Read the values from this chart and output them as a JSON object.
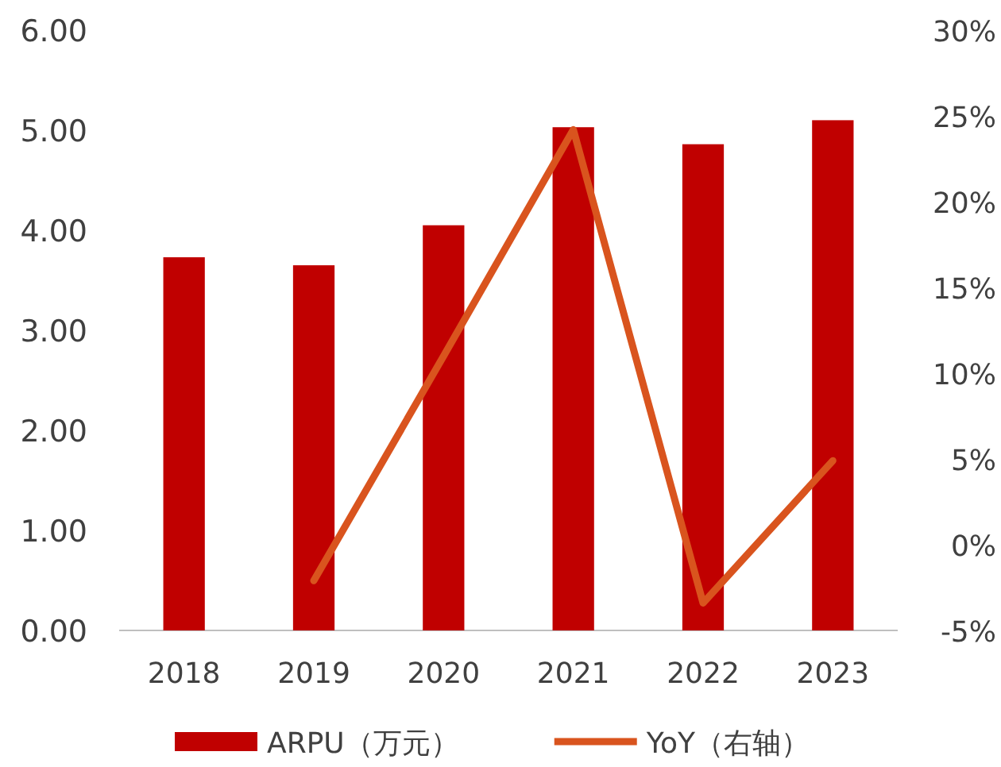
{
  "chart_data": {
    "type": "bar",
    "categories": [
      "2018",
      "2019",
      "2020",
      "2021",
      "2022",
      "2023"
    ],
    "series": [
      {
        "name": "ARPU（万元）",
        "color": "#c00000",
        "values": [
          3.73,
          3.65,
          4.05,
          5.03,
          4.86,
          5.1
        ]
      },
      {
        "name": "YoY（右轴）",
        "type": "line",
        "axis": "y2",
        "color": "#d9541e",
        "values": [
          null,
          -2.1,
          11.0,
          24.2,
          -3.4,
          4.9
        ]
      }
    ],
    "ylim": [
      0,
      6
    ],
    "yticks": [
      {
        "value": 0,
        "label": "0.00"
      },
      {
        "value": 1,
        "label": "1.00"
      },
      {
        "value": 2,
        "label": "2.00"
      },
      {
        "value": 3,
        "label": "3.00"
      },
      {
        "value": 4,
        "label": "4.00"
      },
      {
        "value": 5,
        "label": "5.00"
      },
      {
        "value": 6,
        "label": "6.00"
      }
    ],
    "y2lim": [
      -5,
      30
    ],
    "y2ticks": [
      {
        "value": -5,
        "label": "-5%"
      },
      {
        "value": 0,
        "label": "0%"
      },
      {
        "value": 5,
        "label": "5%"
      },
      {
        "value": 10,
        "label": "10%"
      },
      {
        "value": 15,
        "label": "15%"
      },
      {
        "value": 20,
        "label": "20%"
      },
      {
        "value": 25,
        "label": "25%"
      },
      {
        "value": 30,
        "label": "30%"
      }
    ],
    "grid": false,
    "legend": "bottom",
    "marker": "none"
  }
}
